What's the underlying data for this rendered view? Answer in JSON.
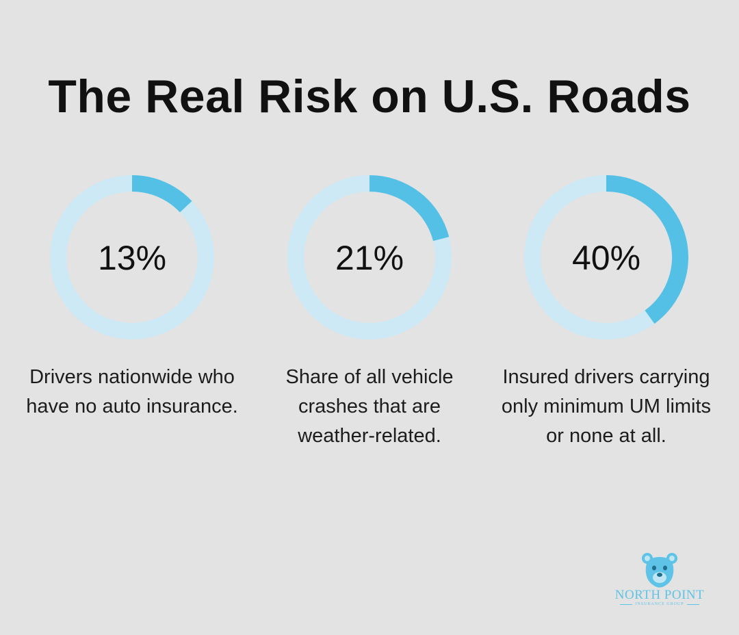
{
  "title": "The Real Risk on U.S. Roads",
  "colors": {
    "background": "#e2e3e2",
    "track": "#cce9f5",
    "fill": "#55c0e6",
    "text": "#111111"
  },
  "chart_data": {
    "type": "donut",
    "title": "The Real Risk on U.S. Roads",
    "items": [
      {
        "value": 13,
        "label": "13%",
        "caption": "Drivers nationwide who have no auto insurance."
      },
      {
        "value": 21,
        "label": "21%",
        "caption": "Share of all vehicle crashes that are weather-related."
      },
      {
        "value": 40,
        "label": "40%",
        "caption": "Insured drivers carrying only minimum UM limits or none at all."
      }
    ]
  },
  "logo": {
    "name": "NORTH POINT",
    "tagline": "INSURANCE GROUP",
    "icon": "bear-icon"
  }
}
